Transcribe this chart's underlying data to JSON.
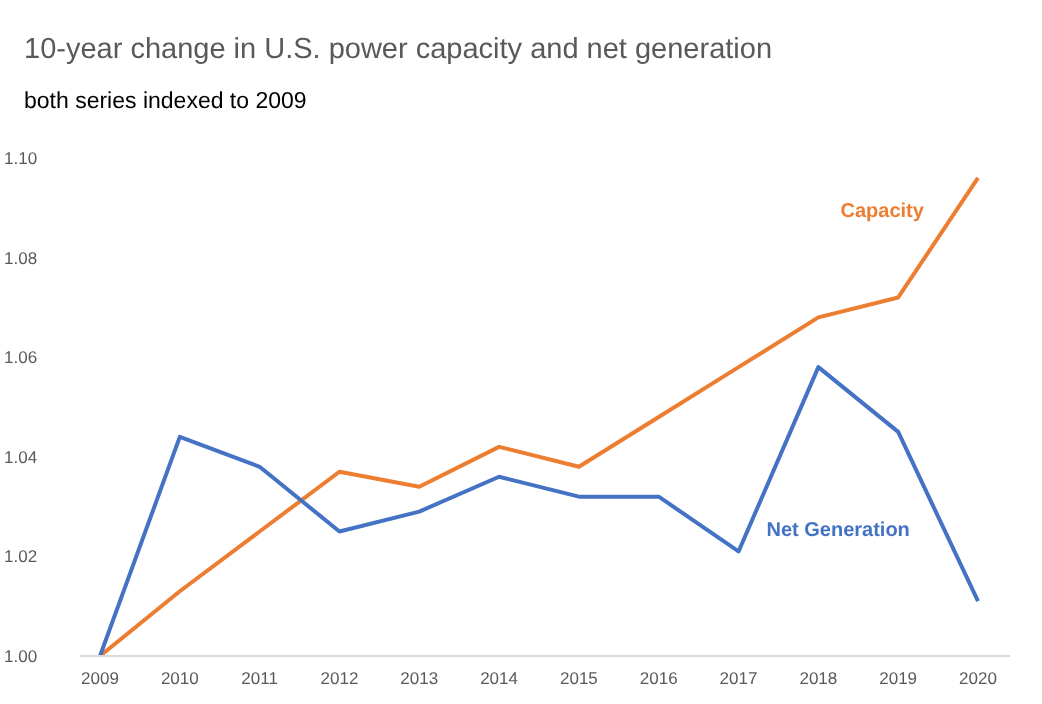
{
  "chart_data": {
    "type": "line",
    "title": "10-year change in U.S. power capacity and net generation",
    "subtitle": "both series indexed to 2009",
    "categories": [
      "2009",
      "2010",
      "2011",
      "2012",
      "2013",
      "2014",
      "2015",
      "2016",
      "2017",
      "2018",
      "2019",
      "2020"
    ],
    "series": [
      {
        "name": "Capacity",
        "color": "#ed7d31",
        "values": [
          1.0,
          1.013,
          1.025,
          1.037,
          1.034,
          1.042,
          1.038,
          1.048,
          1.058,
          1.068,
          1.072,
          1.096
        ]
      },
      {
        "name": "Net Generation",
        "color": "#4472c4",
        "values": [
          1.0,
          1.044,
          1.038,
          1.025,
          1.029,
          1.036,
          1.032,
          1.032,
          1.021,
          1.058,
          1.045,
          1.011
        ]
      }
    ],
    "ylim": [
      1.0,
      1.1
    ],
    "yticks": [
      {
        "value": 1.0,
        "label": "1.00"
      },
      1.02,
      1.04,
      1.06,
      1.08,
      {
        "value": 1.1,
        "label": "1.10"
      }
    ],
    "grid": false,
    "legend": false,
    "marker": "none",
    "line_style": "solid"
  }
}
